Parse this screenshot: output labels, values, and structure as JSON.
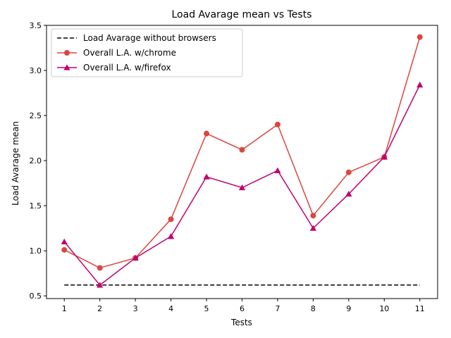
{
  "chart_data": {
    "type": "line",
    "title": "Load Avarage mean vs Tests",
    "xlabel": "Tests",
    "ylabel": "Load Avarage mean",
    "x": [
      1,
      2,
      3,
      4,
      5,
      6,
      7,
      8,
      9,
      10,
      11
    ],
    "xlim": [
      0.5,
      11.5
    ],
    "ylim": [
      0.47,
      3.5
    ],
    "x_ticks": [
      "1",
      "2",
      "3",
      "4",
      "5",
      "6",
      "7",
      "8",
      "9",
      "10",
      "11"
    ],
    "y_ticks": [
      "0.5",
      "1.0",
      "1.5",
      "2.0",
      "2.5",
      "3.0",
      "3.5"
    ],
    "y_tick_values": [
      0.5,
      1.0,
      1.5,
      2.0,
      2.5,
      3.0,
      3.5
    ],
    "grid": false,
    "legend_position": "top-left",
    "series": [
      {
        "name": "Load Avarage without browsers",
        "color": "#000000",
        "style": "dashed",
        "marker": "none",
        "values": [
          0.62,
          0.62,
          0.62,
          0.62,
          0.62,
          0.62,
          0.62,
          0.62,
          0.62,
          0.62,
          0.62
        ]
      },
      {
        "name": "Overall L.A. w/chrome",
        "color": "#d9473f",
        "style": "solid",
        "marker": "circle",
        "values": [
          1.01,
          0.81,
          0.92,
          1.35,
          2.3,
          2.12,
          2.4,
          1.39,
          1.87,
          2.04,
          3.37
        ]
      },
      {
        "name": "Overall L.A. w/firefox",
        "color": "#c0006e",
        "style": "solid",
        "marker": "triangle",
        "values": [
          1.1,
          0.62,
          0.92,
          1.16,
          1.82,
          1.7,
          1.89,
          1.25,
          1.63,
          2.04,
          2.84
        ]
      }
    ]
  }
}
